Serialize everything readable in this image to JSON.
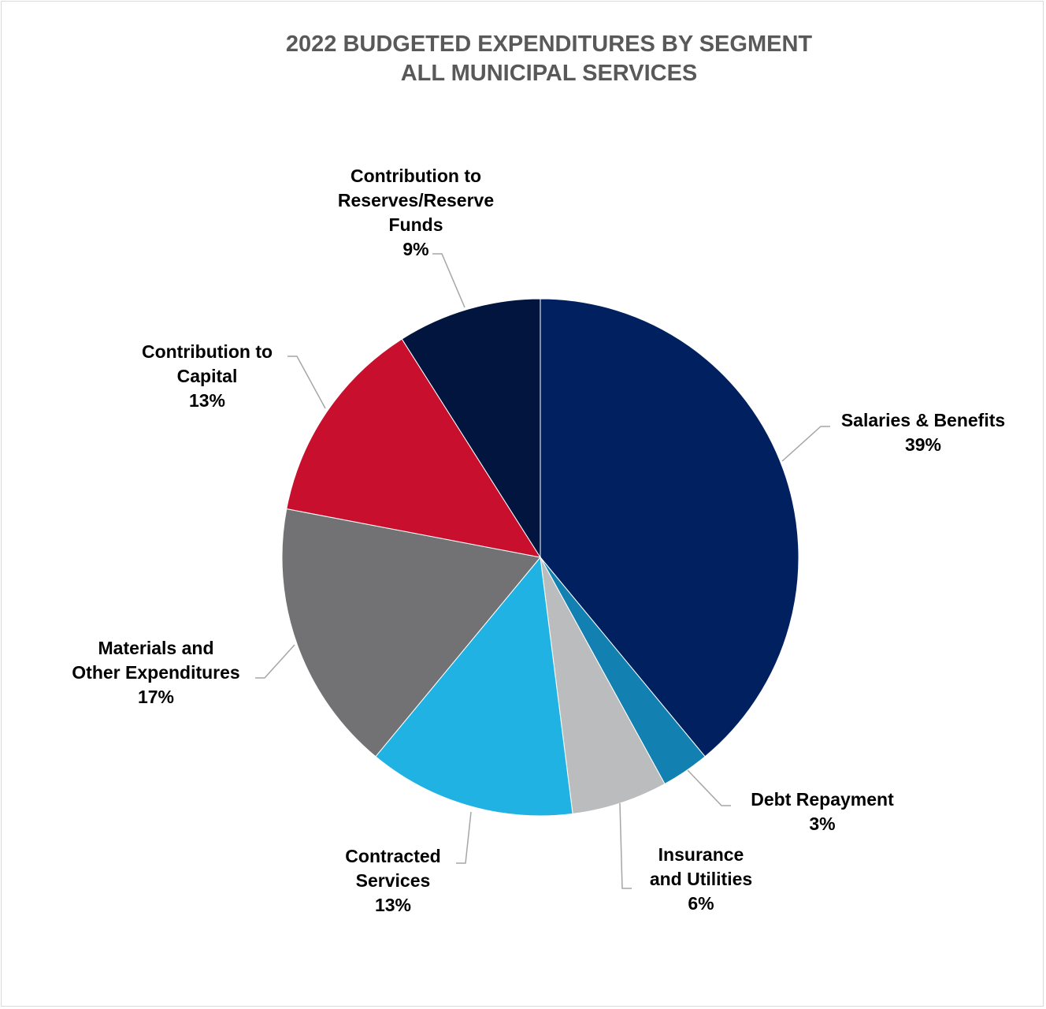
{
  "chart_data": {
    "type": "pie",
    "title": "2022 BUDGETED EXPENDITURES BY SEGMENT",
    "subtitle": "ALL MUNICIPAL SERVICES",
    "slices": [
      {
        "label": "Salaries & Benefits",
        "value": 39,
        "value_label": "39%",
        "color": "#002060"
      },
      {
        "label": "Debt Repayment",
        "value": 3,
        "value_label": "3%",
        "color": "#1380B2"
      },
      {
        "label": "Insurance and Utilities",
        "value": 6,
        "value_label": "6%",
        "color": "#BBBCBE"
      },
      {
        "label": "Contracted Services",
        "value": 13,
        "value_label": "13%",
        "color": "#21B2E4"
      },
      {
        "label": "Materials and Other Expenditures",
        "value": 17,
        "value_label": "17%",
        "color": "#727274"
      },
      {
        "label": "Contribution to Capital",
        "value": 13,
        "value_label": "13%",
        "color": "#C8102E"
      },
      {
        "label": "Contribution to Reserves/Reserve Funds",
        "value": 9,
        "value_label": "9%",
        "color": "#02153F"
      }
    ],
    "label_lines": [
      [
        "Salaries & Benefits",
        "39%"
      ],
      [
        "Debt Repayment",
        "3%"
      ],
      [
        "Insurance",
        "and Utilities",
        "6%"
      ],
      [
        "Contracted",
        "Services",
        "13%"
      ],
      [
        "Materials and",
        "Other Expenditures",
        "17%"
      ],
      [
        "Contribution to",
        "Capital",
        "13%"
      ],
      [
        "Contribution to",
        "Reserves/Reserve",
        "Funds",
        "9%"
      ]
    ],
    "leader_line_color": "#A6A6A6"
  }
}
